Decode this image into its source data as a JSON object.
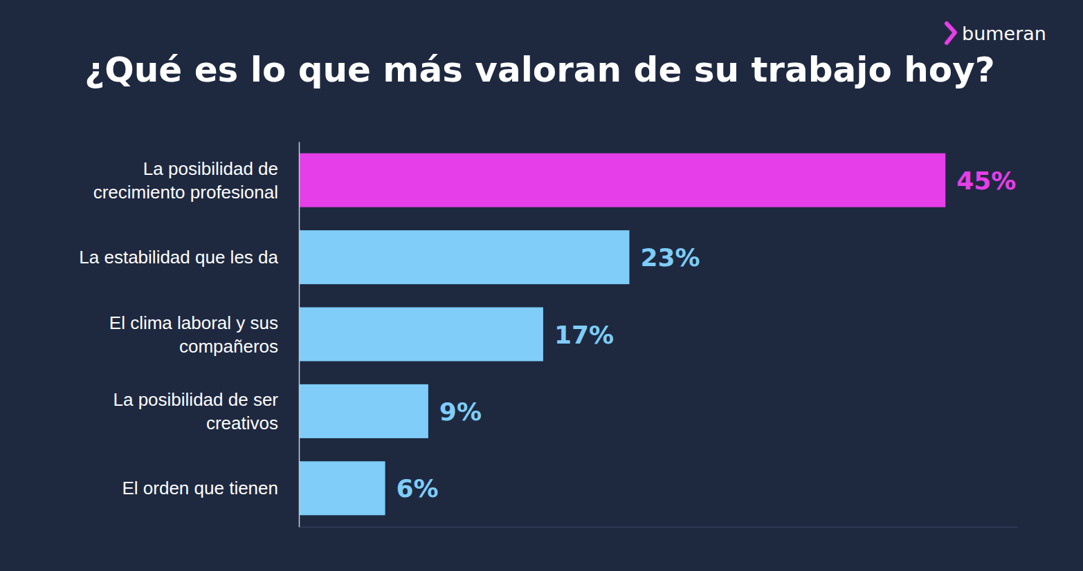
{
  "chart_data": {
    "type": "bar",
    "title": "¿Qué es lo que más valoran de su trabajo hoy?",
    "orientation": "horizontal",
    "categories": [
      "La posibilidad de crecimiento profesional",
      "La estabilidad que les da",
      "El clima laboral y sus compañeros",
      "La posibilidad de ser creativos",
      "El orden que tienen"
    ],
    "values": [
      45,
      23,
      17,
      9,
      6
    ],
    "value_labels": [
      "45%",
      "23%",
      "17%",
      "9%",
      "6%"
    ],
    "colors": [
      "#e63ee8",
      "#7fcdf8",
      "#7fcdf8",
      "#7fcdf8",
      "#7fcdf8"
    ],
    "xlim": [
      0,
      50
    ],
    "xticks": [],
    "data_labels": true,
    "tick_labels": "y",
    "grid": false
  },
  "logo": {
    "text": "bumeran"
  }
}
